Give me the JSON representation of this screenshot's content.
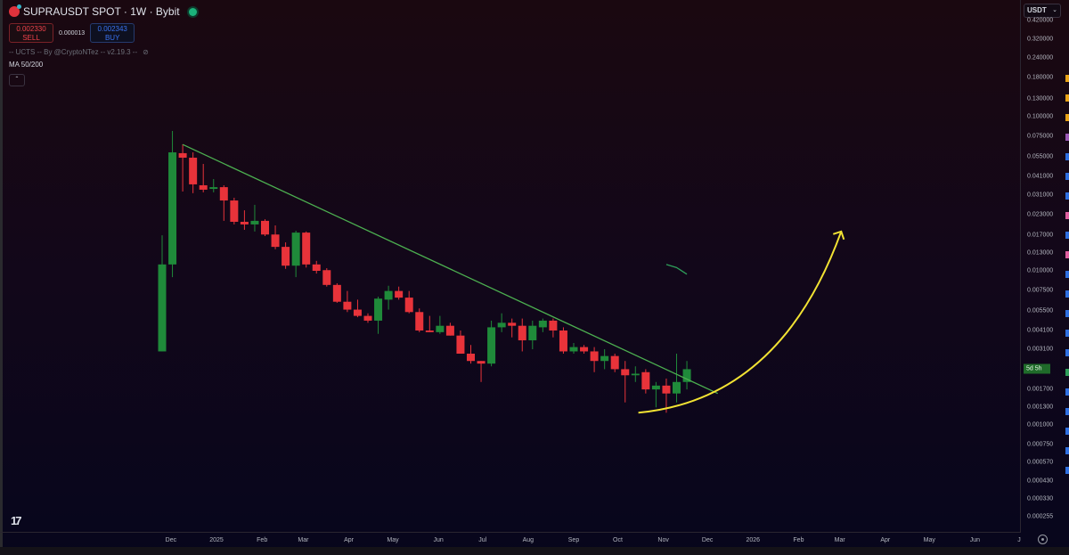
{
  "header": {
    "symbol_title": "SUPRAUSDT SPOT · 1W · Bybit",
    "sell_price": "0.002330",
    "sell_label": "SELL",
    "spread": "0.000013",
    "buy_price": "0.002343",
    "buy_label": "BUY",
    "indicator": "-- UCTS -- By @CryptoNTez -- v2.19.3 --",
    "ma_label": "MA 50/200",
    "collapse_icon": "chevron-up-icon"
  },
  "price_axis": {
    "currency": "USDT",
    "countdown": "5d 5h",
    "ticks": [
      "0.420000",
      "0.320000",
      "0.240000",
      "0.180000",
      "0.130000",
      "0.100000",
      "0.075000",
      "0.055000",
      "0.041000",
      "0.031000",
      "0.023000",
      "0.017000",
      "0.013000",
      "0.010000",
      "0.007500",
      "0.005500",
      "0.004100",
      "0.003100",
      "0.001700",
      "0.001300",
      "0.001000",
      "0.000750",
      "0.000570",
      "0.000430",
      "0.000330",
      "0.000255"
    ]
  },
  "time_axis": {
    "ticks": [
      [
        "Dec",
        "2024-12-01"
      ],
      [
        "2025",
        "2025-01-01"
      ],
      [
        "Feb",
        "2025-02-01"
      ],
      [
        "Mar",
        "2025-03-01"
      ],
      [
        "Apr",
        "2025-04-01"
      ],
      [
        "May",
        "2025-05-01"
      ],
      [
        "Jun",
        "2025-06-01"
      ],
      [
        "Jul",
        "2025-07-01"
      ],
      [
        "Aug",
        "2025-08-01"
      ],
      [
        "Sep",
        "2025-09-01"
      ],
      [
        "Oct",
        "2025-10-01"
      ],
      [
        "Nov",
        "2025-11-01"
      ],
      [
        "Dec",
        "2025-12-01"
      ],
      [
        "2026",
        "2026-01-01"
      ],
      [
        "Feb",
        "2026-02-01"
      ],
      [
        "Mar",
        "2026-03-01"
      ],
      [
        "Apr",
        "2026-04-01"
      ],
      [
        "May",
        "2026-05-01"
      ],
      [
        "Jun",
        "2026-06-01"
      ],
      [
        "J",
        "2026-07-01"
      ]
    ]
  },
  "colors": {
    "up": "#1f8a3a",
    "down": "#e8333a",
    "trendline": "#4caf50",
    "projection": "#f2e233",
    "ma": "#2e9e5a",
    "countdown": "#1f6b2a"
  },
  "chart_data": {
    "type": "candlestick",
    "interval": "1W",
    "y_scale": "log",
    "ylim": [
      0.00022,
      0.45
    ],
    "grid": false,
    "columns": [
      "week",
      "open",
      "high",
      "low",
      "close"
    ],
    "candles": [
      [
        "2024-11-25",
        0.003,
        0.017,
        0.003,
        0.011
      ],
      [
        "2024-12-02",
        0.011,
        0.0808,
        0.0091,
        0.0587
      ],
      [
        "2024-12-09",
        0.058,
        0.0662,
        0.0327,
        0.0542
      ],
      [
        "2024-12-16",
        0.0542,
        0.0587,
        0.0319,
        0.0364
      ],
      [
        "2024-12-23",
        0.0359,
        0.0494,
        0.0323,
        0.0336
      ],
      [
        "2024-12-30",
        0.034,
        0.0394,
        0.0323,
        0.0349
      ],
      [
        "2025-01-06",
        0.0349,
        0.0359,
        0.0211,
        0.0286
      ],
      [
        "2025-01-13",
        0.0286,
        0.0298,
        0.02,
        0.0208
      ],
      [
        "2025-01-20",
        0.0208,
        0.0247,
        0.01845,
        0.02
      ],
      [
        "2025-01-27",
        0.02,
        0.0268,
        0.018,
        0.0211
      ],
      [
        "2025-02-03",
        0.0211,
        0.0216,
        0.0168,
        0.0172
      ],
      [
        "2025-02-10",
        0.0172,
        0.0197,
        0.0138,
        0.0143
      ],
      [
        "2025-02-17",
        0.0143,
        0.0153,
        0.0103,
        0.0108
      ],
      [
        "2025-02-24",
        0.0108,
        0.0182,
        0.0091,
        0.0177
      ],
      [
        "2025-03-03",
        0.0177,
        0.018,
        0.0105,
        0.011
      ],
      [
        "2025-03-10",
        0.011,
        0.0116,
        0.0096,
        0.01
      ],
      [
        "2025-03-17",
        0.0101,
        0.0104,
        0.0079,
        0.0081
      ],
      [
        "2025-03-24",
        0.0081,
        0.0083,
        0.0062,
        0.0063
      ],
      [
        "2025-03-31",
        0.0063,
        0.0074,
        0.0054,
        0.0056
      ],
      [
        "2025-04-07",
        0.0056,
        0.0065,
        0.005,
        0.0051
      ],
      [
        "2025-04-14",
        0.0051,
        0.0053,
        0.0046,
        0.00475
      ],
      [
        "2025-04-21",
        0.00475,
        0.0068,
        0.0039,
        0.0066
      ],
      [
        "2025-04-28",
        0.0065,
        0.008,
        0.0056,
        0.0074
      ],
      [
        "2025-05-05",
        0.0074,
        0.0079,
        0.0065,
        0.0067
      ],
      [
        "2025-05-12",
        0.0067,
        0.0074,
        0.0053,
        0.0054
      ],
      [
        "2025-05-19",
        0.0054,
        0.0057,
        0.004,
        0.0041
      ],
      [
        "2025-05-26",
        0.0041,
        0.0051,
        0.004,
        0.004
      ],
      [
        "2025-06-02",
        0.004,
        0.0051,
        0.0039,
        0.0044
      ],
      [
        "2025-06-09",
        0.0044,
        0.0046,
        0.0038,
        0.0038
      ],
      [
        "2025-06-16",
        0.0038,
        0.0041,
        0.0029,
        0.0029
      ],
      [
        "2025-06-23",
        0.0029,
        0.0033,
        0.0025,
        0.0026
      ],
      [
        "2025-06-30",
        0.0026,
        0.0026,
        0.0019,
        0.0025
      ],
      [
        "2025-07-07",
        0.0025,
        0.00475,
        0.0024,
        0.0043
      ],
      [
        "2025-07-14",
        0.0043,
        0.0053,
        0.004,
        0.0046
      ],
      [
        "2025-07-21",
        0.0046,
        0.0049,
        0.0037,
        0.0044
      ],
      [
        "2025-07-28",
        0.0044,
        0.0049,
        0.003,
        0.00354
      ],
      [
        "2025-08-04",
        0.00354,
        0.00475,
        0.0031,
        0.0044
      ],
      [
        "2025-08-11",
        0.0043,
        0.0049,
        0.004,
        0.00475
      ],
      [
        "2025-08-18",
        0.00475,
        0.0049,
        0.0037,
        0.0041
      ],
      [
        "2025-08-25",
        0.0041,
        0.0043,
        0.0029,
        0.003
      ],
      [
        "2025-09-01",
        0.003,
        0.0034,
        0.0029,
        0.0032
      ],
      [
        "2025-09-08",
        0.0032,
        0.0033,
        0.0029,
        0.003
      ],
      [
        "2025-09-15",
        0.003,
        0.0032,
        0.0022,
        0.0026
      ],
      [
        "2025-09-22",
        0.0026,
        0.0031,
        0.0023,
        0.0028
      ],
      [
        "2025-09-29",
        0.0028,
        0.0029,
        0.0022,
        0.0023
      ],
      [
        "2025-10-06",
        0.0023,
        0.0026,
        0.0014,
        0.0021
      ],
      [
        "2025-10-13",
        0.0021,
        0.0024,
        0.0019,
        0.00215
      ],
      [
        "2025-10-20",
        0.0022,
        0.0023,
        0.0016,
        0.0017
      ],
      [
        "2025-10-27",
        0.0017,
        0.0019,
        0.0013,
        0.0018
      ],
      [
        "2025-11-03",
        0.0018,
        0.002,
        0.0012,
        0.0016
      ],
      [
        "2025-11-10",
        0.0016,
        0.0029,
        0.0014,
        0.0019
      ],
      [
        "2025-11-17",
        0.0019,
        0.0026,
        0.0017,
        0.0023
      ]
    ],
    "trendline": [
      [
        "2024-12-09",
        0.066
      ],
      [
        "2025-12-08",
        0.0016
      ]
    ],
    "projection_arrow": [
      [
        "2025-10-15",
        0.0012
      ],
      [
        "2026-03-02",
        0.018
      ]
    ],
    "ma_segment": [
      [
        "2025-11-03",
        0.011
      ],
      [
        "2025-11-10",
        0.0105
      ],
      [
        "2025-11-17",
        0.0095
      ]
    ]
  }
}
